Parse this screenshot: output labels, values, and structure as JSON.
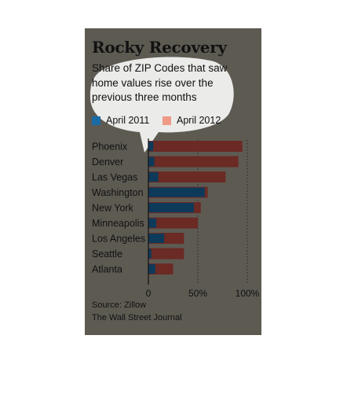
{
  "chart_data": {
    "type": "bar",
    "title": "Rocky Recovery",
    "subtitle": "Share of ZIP Codes that saw home values rise over the previous three months",
    "categories": [
      "Phoenix",
      "Denver",
      "Las Vegas",
      "Washington",
      "New York",
      "Minneapolis",
      "Los Angeles",
      "Seattle",
      "Atlanta"
    ],
    "series": [
      {
        "name": "April 2011",
        "color": "#0e3a5a",
        "values": [
          5,
          6,
          10,
          57,
          46,
          8,
          16,
          3,
          7
        ]
      },
      {
        "name": "April 2012",
        "color": "#6b2a24",
        "values": [
          95,
          91,
          78,
          60,
          53,
          50,
          36,
          36,
          25
        ]
      }
    ],
    "legend_swatch_colors": [
      "#1a6aa5",
      "#ef9a86"
    ],
    "xticks": [
      {
        "value": 0,
        "label": "0"
      },
      {
        "value": 50,
        "label": "50%"
      },
      {
        "value": 100,
        "label": "100%"
      }
    ],
    "xlim": [
      0,
      100
    ],
    "grid": "dotted vertical lines at 50% and 100%",
    "legend_position": "top",
    "orientation": "horizontal"
  },
  "source": {
    "line1": "Source: Zillow",
    "line2": "The Wall Street Journal"
  }
}
